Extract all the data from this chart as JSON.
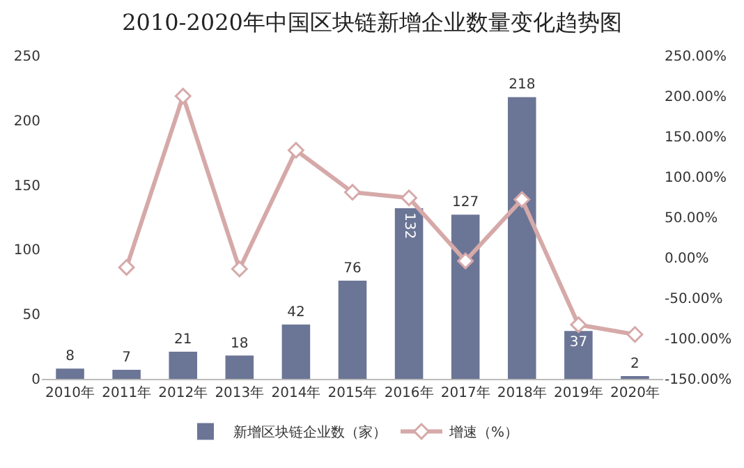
{
  "chart_data": {
    "type": "bar",
    "title": "2010-2020年中国区块链新增企业数量变化趋势图",
    "categories": [
      "2010年",
      "2011年",
      "2012年",
      "2013年",
      "2014年",
      "2015年",
      "2016年",
      "2017年",
      "2018年",
      "2019年",
      "2020年"
    ],
    "series": [
      {
        "name": "新增区块链企业数（家）",
        "color": "#6b7596",
        "values": [
          8,
          7,
          21,
          18,
          42,
          76,
          132,
          127,
          218,
          37,
          2
        ],
        "value_labels": [
          "8",
          "7",
          "21",
          "18",
          "42",
          "76",
          "132",
          "127",
          "218",
          "37",
          "2"
        ]
      },
      {
        "name": "增速（%）",
        "type": "line",
        "axis": "y2",
        "color": "#d6a9a9",
        "marker": "diamond",
        "values": [
          null,
          -12,
          200,
          -14,
          133,
          81,
          74,
          -4,
          72,
          -83,
          -95
        ]
      }
    ],
    "ylim": [
      0,
      250
    ],
    "yticks": [
      0,
      50,
      100,
      150,
      200,
      250
    ],
    "y2lim": [
      -150,
      250
    ],
    "y2ticks": [
      {
        "value": -150,
        "label": "-150.00%"
      },
      {
        "value": -100,
        "label": "-100.00%"
      },
      {
        "value": -50,
        "label": "-50.00%"
      },
      {
        "value": 0,
        "label": "0.00%"
      },
      {
        "value": 50,
        "label": "50.00%"
      },
      {
        "value": 100,
        "label": "100.00%"
      },
      {
        "value": 150,
        "label": "150.00%"
      },
      {
        "value": 200,
        "label": "200.00%"
      },
      {
        "value": 250,
        "label": "250.00%"
      }
    ],
    "grid": false,
    "legend": "bottom"
  }
}
